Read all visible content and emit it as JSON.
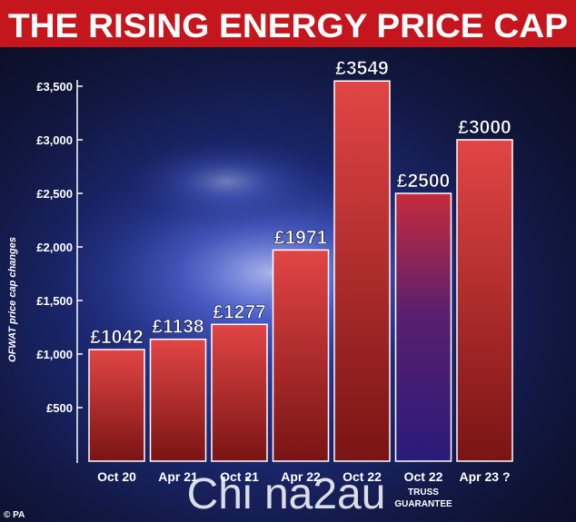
{
  "title": "THE RISING ENERGY PRICE CAP",
  "source": "© PA",
  "watermark": "Chi na2au",
  "colors": {
    "title_bg": "#c4161c",
    "title_text": "#ffffff",
    "bar_red": "#d93a3a",
    "bar_dark": "#7a1414",
    "bar_blue": "#241a7a",
    "label_text": "#ffffff"
  },
  "chart_data": {
    "type": "bar",
    "title": "THE RISING ENERGY PRICE CAP",
    "ylabel": "OFWAT price cap changes",
    "xlabel": "",
    "ylim": [
      0,
      3500
    ],
    "yticks": [
      500,
      1000,
      1500,
      2000,
      2500,
      3000,
      3500
    ],
    "ytick_labels": [
      "£500",
      "£1,000",
      "£1,500",
      "£2,000",
      "£2,500",
      "£3,000",
      "£3,500"
    ],
    "categories": [
      "Oct 20",
      "Apr 21",
      "Oct 21",
      "Apr 22",
      "Oct 22",
      "Oct 22",
      "Apr 23 ?"
    ],
    "category_sublabels": [
      "",
      "",
      "",
      "",
      "",
      "TRUSS\nGUARANTEE",
      ""
    ],
    "values": [
      1042,
      1138,
      1277,
      1971,
      3549,
      2500,
      3000
    ],
    "value_labels": [
      "£1042",
      "£1138",
      "£1277",
      "£1971",
      "£3549",
      "£2500",
      "£3000"
    ],
    "grid": false,
    "legend": "none"
  }
}
